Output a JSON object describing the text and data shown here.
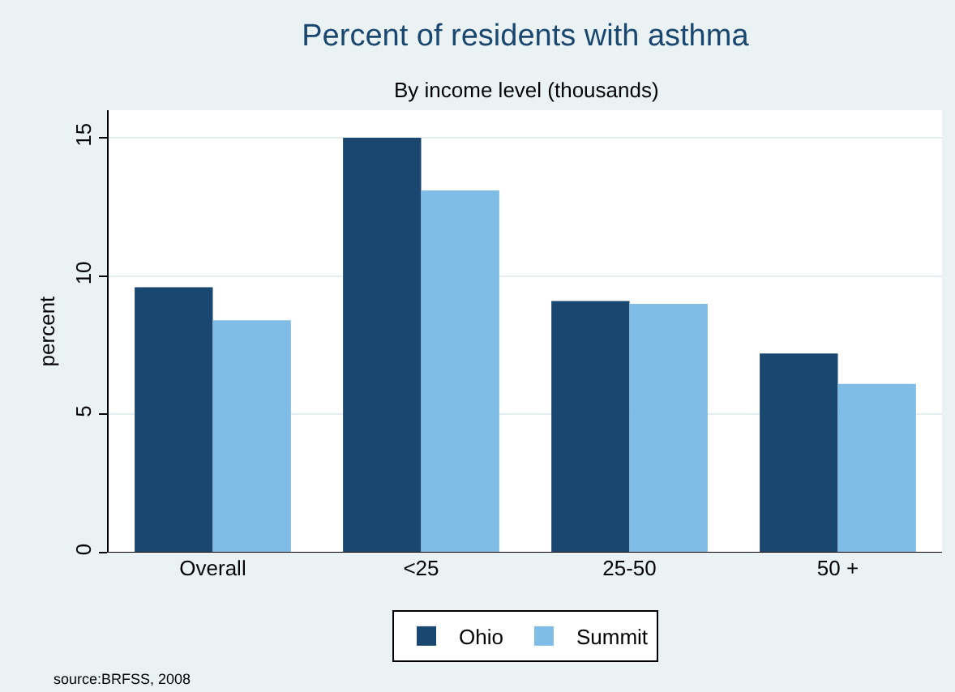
{
  "chart_data": {
    "type": "bar",
    "title": "Percent of residents with asthma",
    "subtitle": "By income level (thousands)",
    "ylabel": "percent",
    "categories": [
      "Overall",
      "<25",
      "25-50",
      "50 +"
    ],
    "series": [
      {
        "name": "Ohio",
        "color": "#1a476f",
        "values": [
          9.6,
          15.0,
          9.1,
          7.2
        ]
      },
      {
        "name": "Summit",
        "color": "#80bde6",
        "values": [
          8.4,
          13.1,
          9.0,
          6.1
        ]
      }
    ],
    "ylim": [
      0,
      16
    ],
    "yticks": [
      0,
      5,
      10,
      15
    ],
    "grid": "y",
    "legend": "bottom",
    "annotations": [
      "source:BRFSS, 2008"
    ]
  }
}
